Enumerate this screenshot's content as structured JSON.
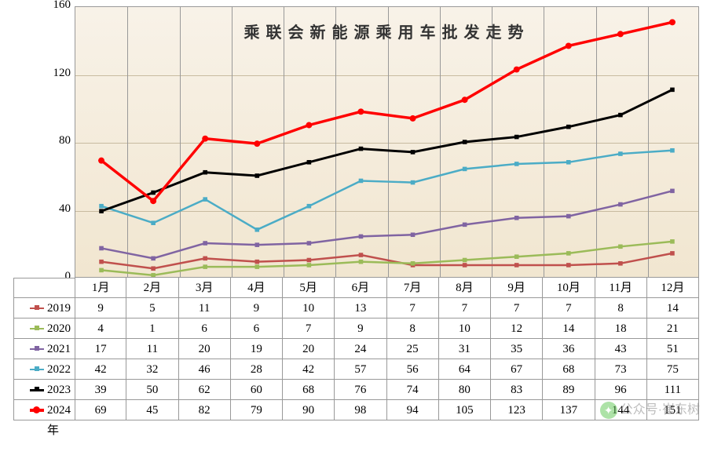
{
  "chart": {
    "type": "line",
    "title": "乘联会新能源乘用车批发走势",
    "title_fontsize": 20,
    "title_letterspacing": 8,
    "categories": [
      "1月",
      "2月",
      "3月",
      "4月",
      "5月",
      "6月",
      "7月",
      "8月",
      "9月",
      "10月",
      "11月",
      "12月"
    ],
    "ylim": [
      0,
      160
    ],
    "ytick_step": 40,
    "yticks": [
      0,
      40,
      80,
      120,
      160
    ],
    "plot_bg_gradient": [
      "#f8f2e8",
      "#f1e6d0"
    ],
    "grid_color": "#c8bba0",
    "border_color": "#999999",
    "marker_size": 8,
    "font_family": "SimSun",
    "series": [
      {
        "name": "2019年",
        "color": "#c0504d",
        "line_width": 2.5,
        "marker": "square",
        "label_dash": true,
        "values": [
          9,
          5,
          11,
          9,
          10,
          13,
          7,
          7,
          7,
          7,
          8,
          14
        ]
      },
      {
        "name": "2020年",
        "color": "#9bbb59",
        "line_width": 2.5,
        "marker": "square",
        "label_dash": true,
        "values": [
          4,
          1,
          6,
          6,
          7,
          9,
          8,
          10,
          12,
          14,
          18,
          21
        ]
      },
      {
        "name": "2021年",
        "color": "#8064a2",
        "line_width": 2.5,
        "marker": "square",
        "label_dash": true,
        "values": [
          17,
          11,
          20,
          19,
          20,
          24,
          25,
          31,
          35,
          36,
          43,
          51
        ]
      },
      {
        "name": "2022年",
        "color": "#4bacc6",
        "line_width": 2.5,
        "marker": "square",
        "label_dash": true,
        "values": [
          42,
          32,
          46,
          28,
          42,
          57,
          56,
          64,
          67,
          68,
          73,
          75
        ]
      },
      {
        "name": "2023年",
        "color": "#000000",
        "line_width": 3,
        "marker": "square",
        "label_dash": true,
        "values": [
          39,
          50,
          62,
          60,
          68,
          76,
          74,
          80,
          83,
          89,
          96,
          111
        ]
      },
      {
        "name": "2024年",
        "color": "#ff0000",
        "line_width": 3.5,
        "marker": "circle",
        "label_dash": false,
        "values": [
          69,
          45,
          82,
          79,
          90,
          98,
          94,
          105,
          123,
          137,
          144,
          151
        ]
      }
    ]
  },
  "watermark": {
    "text": "公众号·崔东树",
    "icon": "wechat"
  }
}
